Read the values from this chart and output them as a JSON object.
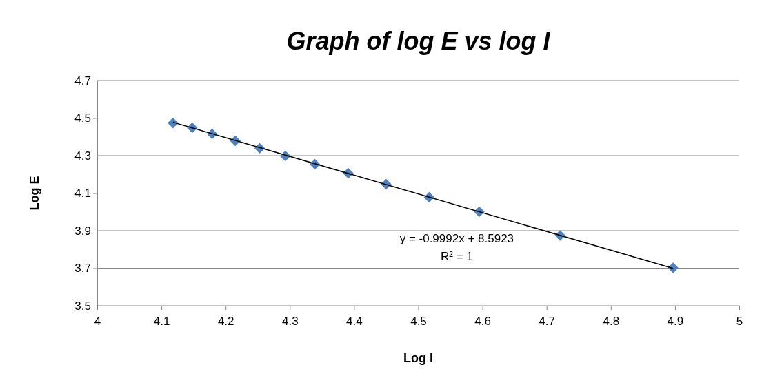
{
  "chart_data": {
    "type": "scatter",
    "title": "Graph of log E vs log I",
    "xlabel": "Log I",
    "ylabel": "Log E",
    "xlim": [
      4,
      5
    ],
    "xticks": [
      4,
      4.1,
      4.2,
      4.3,
      4.4,
      4.5,
      4.6,
      4.7,
      4.8,
      4.9,
      5
    ],
    "ylim": [
      3.5,
      4.7
    ],
    "yticks": [
      3.5,
      3.7,
      3.9,
      4.1,
      4.3,
      4.5,
      4.7
    ],
    "grid": "y",
    "marker": "diamond",
    "series": [
      {
        "color": "#4f81bd",
        "x": [
          4.118,
          4.148,
          4.179,
          4.215,
          4.253,
          4.293,
          4.339,
          4.391,
          4.45,
          4.517,
          4.595,
          4.721,
          4.897
        ],
        "values": [
          4.474,
          4.449,
          4.416,
          4.379,
          4.339,
          4.298,
          4.254,
          4.206,
          4.148,
          4.078,
          4.001,
          3.874,
          3.702
        ]
      },
      {
        "type": "line",
        "color": "#000000",
        "x": [
          4.118,
          4.897
        ],
        "values": [
          4.478,
          3.699
        ],
        "marker": "none"
      }
    ],
    "annotations": [
      "y = -0.9992x + 8.5923",
      "R² = 1"
    ]
  }
}
